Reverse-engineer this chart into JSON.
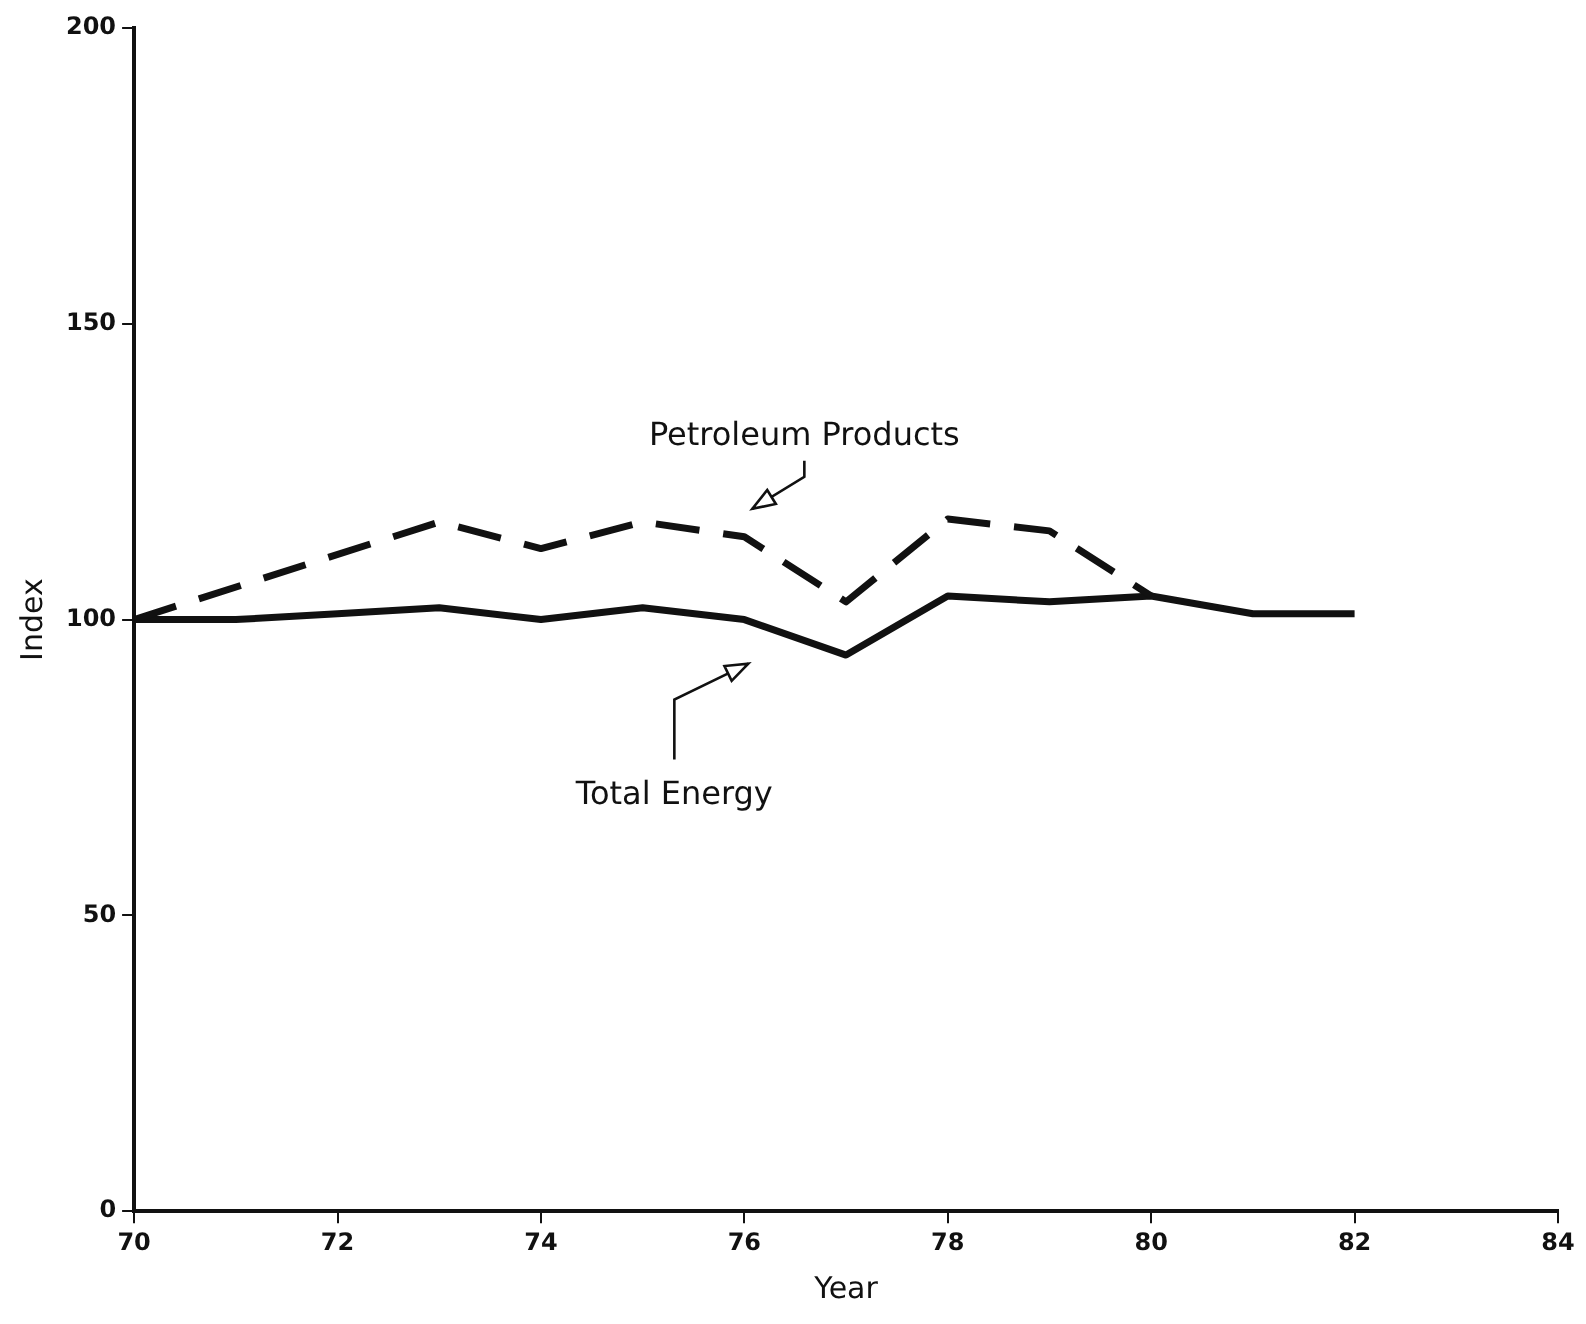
{
  "chart_data": {
    "type": "line",
    "xlabel": "Year",
    "ylabel": "Index",
    "xlim": [
      70,
      84
    ],
    "xticks": [
      70,
      72,
      74,
      76,
      78,
      80,
      82,
      84
    ],
    "ylim": [
      0,
      200
    ],
    "yticks": [
      0,
      50,
      100,
      150,
      200
    ],
    "grid": false,
    "legend": false,
    "marker": "none",
    "series": [
      {
        "name": "Petroleum Products",
        "color": "#111111",
        "line_style": "dashed",
        "x": [
          70,
          73,
          74,
          75,
          76,
          77,
          78,
          79,
          80
        ],
        "values": [
          100,
          116.5,
          112,
          116.5,
          114,
          103,
          117,
          115,
          104
        ]
      },
      {
        "name": "Total Energy",
        "color": "#111111",
        "line_style": "solid",
        "x": [
          70,
          71,
          72,
          73,
          74,
          75,
          76,
          77,
          78,
          79,
          80,
          81,
          82
        ],
        "values": [
          100,
          100,
          101,
          102,
          100,
          102,
          100,
          94,
          104,
          103,
          104,
          101,
          101
        ]
      }
    ]
  }
}
